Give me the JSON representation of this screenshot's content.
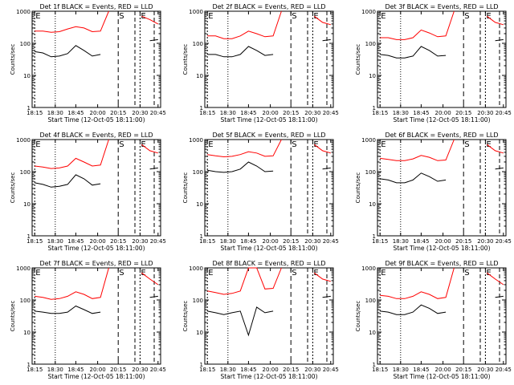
{
  "figure": {
    "colors": {
      "events": "#000000",
      "lld": "#ff0000",
      "axes": "#000000",
      "background": "#ffffff"
    }
  },
  "chart_data": [
    {
      "type": "line",
      "title": "Det 1f BLACK = Events, RED = LLD",
      "xlabel": "Start Time (12-Oct-05 18:11:00)",
      "ylabel": "Counts/sec",
      "x_tick_labels": [
        "18:15",
        "18:30",
        "18:45",
        "20:00",
        "20:15",
        "20:30",
        "20:45"
      ],
      "y_scale": "log",
      "ylim": [
        1,
        1000
      ],
      "y_tick_labels": [
        "1",
        "10",
        "100",
        "1000"
      ],
      "markers": [
        {
          "label": "E",
          "x": "18:15"
        },
        {
          "label": "S",
          "x": "20:15"
        },
        {
          "label": "E",
          "x": "20:30"
        }
      ],
      "series": [
        {
          "name": "LLD",
          "color": "#ff0000",
          "values": [
            240,
            240,
            220,
            230,
            280,
            330,
            300,
            230,
            240,
            1000,
            null,
            null,
            null,
            700,
            550,
            400
          ]
        },
        {
          "name": "Events",
          "color": "#000000",
          "values": [
            55,
            50,
            38,
            40,
            48,
            85,
            60,
            40,
            45,
            null,
            null,
            null,
            null,
            null,
            120,
            130
          ]
        }
      ]
    },
    {
      "type": "line",
      "title": "Det 2f BLACK = Events, RED = LLD",
      "xlabel": "Start Time (12-Oct-05 18:11:00)",
      "ylabel": "Counts/sec",
      "x_tick_labels": [
        "18:15",
        "18:30",
        "18:45",
        "20:00",
        "20:15",
        "20:30",
        "20:45"
      ],
      "y_scale": "log",
      "ylim": [
        1,
        1000
      ],
      "y_tick_labels": [
        "1",
        "10",
        "100",
        "1000"
      ],
      "markers": [
        {
          "label": "E",
          "x": "18:15"
        },
        {
          "label": "S",
          "x": "20:15"
        },
        {
          "label": "E",
          "x": "20:30"
        }
      ],
      "series": [
        {
          "name": "LLD",
          "color": "#ff0000",
          "values": [
            170,
            170,
            140,
            140,
            170,
            240,
            200,
            160,
            170,
            1000,
            null,
            null,
            null,
            700,
            450,
            380
          ]
        },
        {
          "name": "Events",
          "color": "#000000",
          "values": [
            45,
            45,
            38,
            38,
            45,
            80,
            60,
            42,
            45,
            null,
            null,
            null,
            null,
            null,
            120,
            130
          ]
        }
      ]
    },
    {
      "type": "line",
      "title": "Det 3f BLACK = Events, RED = LLD",
      "xlabel": "Start Time (12-Oct-05 18:11:00)",
      "ylabel": "Counts/sec",
      "x_tick_labels": [
        "18:15",
        "18:30",
        "18:45",
        "20:00",
        "20:15",
        "20:30",
        "20:45"
      ],
      "y_scale": "log",
      "ylim": [
        1,
        1000
      ],
      "y_tick_labels": [
        "1",
        "10",
        "100",
        "1000"
      ],
      "markers": [
        {
          "label": "E",
          "x": "18:15"
        },
        {
          "label": "S",
          "x": "20:15"
        },
        {
          "label": "E",
          "x": "20:30"
        }
      ],
      "series": [
        {
          "name": "LLD",
          "color": "#ff0000",
          "values": [
            150,
            150,
            130,
            130,
            150,
            260,
            210,
            160,
            170,
            1000,
            null,
            null,
            null,
            700,
            450,
            380
          ]
        },
        {
          "name": "Events",
          "color": "#000000",
          "values": [
            45,
            42,
            35,
            35,
            40,
            80,
            60,
            40,
            42,
            null,
            null,
            null,
            null,
            null,
            120,
            130
          ]
        }
      ]
    },
    {
      "type": "line",
      "title": "Det 4f BLACK = Events, RED = LLD",
      "xlabel": "Start Time (12-Oct-05 18:11:00)",
      "ylabel": "Counts/sec",
      "x_tick_labels": [
        "18:15",
        "18:30",
        "18:45",
        "20:00",
        "20:15",
        "20:30",
        "20:45"
      ],
      "y_scale": "log",
      "ylim": [
        1,
        1000
      ],
      "y_tick_labels": [
        "1",
        "10",
        "100",
        "1000"
      ],
      "markers": [
        {
          "label": "E",
          "x": "18:15"
        },
        {
          "label": "S",
          "x": "20:15"
        },
        {
          "label": "E",
          "x": "20:30"
        }
      ],
      "series": [
        {
          "name": "LLD",
          "color": "#ff0000",
          "values": [
            150,
            140,
            125,
            130,
            150,
            260,
            200,
            150,
            160,
            1000,
            null,
            null,
            null,
            700,
            450,
            380
          ]
        },
        {
          "name": "Events",
          "color": "#000000",
          "values": [
            45,
            40,
            33,
            35,
            40,
            80,
            60,
            38,
            42,
            null,
            null,
            null,
            null,
            null,
            120,
            130
          ]
        }
      ]
    },
    {
      "type": "line",
      "title": "Det 5f BLACK = Events, RED = LLD",
      "xlabel": "Start Time (12-Oct-05 18:11:00)",
      "ylabel": "Counts/sec",
      "x_tick_labels": [
        "18:15",
        "18:30",
        "18:45",
        "20:00",
        "20:15",
        "20:30",
        "20:45"
      ],
      "y_scale": "log",
      "ylim": [
        1,
        1000
      ],
      "y_tick_labels": [
        "1",
        "10",
        "100",
        "1000"
      ],
      "markers": [
        {
          "label": "E",
          "x": "18:15"
        },
        {
          "label": "S",
          "x": "20:15"
        },
        {
          "label": "E",
          "x": "20:30"
        }
      ],
      "series": [
        {
          "name": "LLD",
          "color": "#ff0000",
          "values": [
            340,
            310,
            290,
            300,
            340,
            420,
            380,
            300,
            310,
            1000,
            null,
            null,
            null,
            700,
            450,
            380
          ]
        },
        {
          "name": "Events",
          "color": "#000000",
          "values": [
            110,
            100,
            95,
            100,
            120,
            200,
            150,
            100,
            105,
            null,
            null,
            null,
            null,
            null,
            120,
            130
          ]
        }
      ]
    },
    {
      "type": "line",
      "title": "Det 6f BLACK = Events, RED = LLD",
      "xlabel": "Start Time (12-Oct-05 18:11:00)",
      "ylabel": "Counts/sec",
      "x_tick_labels": [
        "18:15",
        "18:30",
        "18:45",
        "20:00",
        "20:15",
        "20:30",
        "20:45"
      ],
      "y_scale": "log",
      "ylim": [
        1,
        1000
      ],
      "y_tick_labels": [
        "1",
        "10",
        "100",
        "1000"
      ],
      "markers": [
        {
          "label": "E",
          "x": "18:15"
        },
        {
          "label": "S",
          "x": "20:15"
        },
        {
          "label": "E",
          "x": "20:30"
        }
      ],
      "series": [
        {
          "name": "LLD",
          "color": "#ff0000",
          "values": [
            260,
            240,
            220,
            220,
            250,
            320,
            280,
            220,
            230,
            1000,
            null,
            null,
            null,
            700,
            450,
            380
          ]
        },
        {
          "name": "Events",
          "color": "#000000",
          "values": [
            60,
            55,
            45,
            45,
            55,
            90,
            70,
            50,
            55,
            null,
            null,
            null,
            null,
            null,
            120,
            130
          ]
        }
      ]
    },
    {
      "type": "line",
      "title": "Det 7f BLACK = Events, RED = LLD",
      "xlabel": "Start Time (12-Oct-05 18:11:00)",
      "ylabel": "Counts/sec",
      "x_tick_labels": [
        "18:15",
        "18:30",
        "18:45",
        "20:00",
        "20:15",
        "20:30",
        "20:45"
      ],
      "y_scale": "log",
      "ylim": [
        1,
        1000
      ],
      "y_tick_labels": [
        "1",
        "10",
        "100",
        "1000"
      ],
      "markers": [
        {
          "label": "E",
          "x": "18:15"
        },
        {
          "label": "S",
          "x": "20:15"
        },
        {
          "label": "E",
          "x": "20:30"
        }
      ],
      "series": [
        {
          "name": "LLD",
          "color": "#ff0000",
          "values": [
            130,
            120,
            105,
            110,
            130,
            180,
            150,
            110,
            120,
            1000,
            null,
            null,
            null,
            700,
            450,
            300
          ]
        },
        {
          "name": "Events",
          "color": "#000000",
          "values": [
            45,
            42,
            38,
            38,
            42,
            65,
            50,
            38,
            42,
            null,
            null,
            null,
            null,
            null,
            120,
            130
          ]
        }
      ]
    },
    {
      "type": "line",
      "title": "Det 8f BLACK = Events, RED = LLD",
      "xlabel": "Start Time (12-Oct-05 18:11:00)",
      "ylabel": "Counts/sec",
      "x_tick_labels": [
        "18:15",
        "18:30",
        "18:45",
        "20:00",
        "20:15",
        "20:30",
        "20:45"
      ],
      "y_scale": "log",
      "ylim": [
        1,
        1000
      ],
      "y_tick_labels": [
        "1",
        "10",
        "100",
        "1000"
      ],
      "markers": [
        {
          "label": "E",
          "x": "18:15"
        },
        {
          "label": "S",
          "x": "20:15"
        },
        {
          "label": "E",
          "x": "20:30"
        }
      ],
      "series": [
        {
          "name": "LLD",
          "color": "#ff0000",
          "values": [
            190,
            170,
            150,
            160,
            190,
            1000,
            1000,
            220,
            230,
            1000,
            null,
            null,
            null,
            700,
            450,
            380
          ]
        },
        {
          "name": "Events",
          "color": "#000000",
          "values": [
            45,
            40,
            35,
            40,
            45,
            8,
            60,
            40,
            45,
            null,
            null,
            null,
            null,
            null,
            120,
            130
          ]
        }
      ]
    },
    {
      "type": "line",
      "title": "Det 9f BLACK = Events, RED = LLD",
      "xlabel": "Start Time (12-Oct-05 18:11:00)",
      "ylabel": "Counts/sec",
      "x_tick_labels": [
        "18:15",
        "18:30",
        "18:45",
        "20:00",
        "20:15",
        "20:30",
        "20:45"
      ],
      "y_scale": "log",
      "ylim": [
        1,
        1000
      ],
      "y_tick_labels": [
        "1",
        "10",
        "100",
        "1000"
      ],
      "markers": [
        {
          "label": "E",
          "x": "18:15"
        },
        {
          "label": "S",
          "x": "20:15"
        },
        {
          "label": "E",
          "x": "20:30"
        }
      ],
      "series": [
        {
          "name": "LLD",
          "color": "#ff0000",
          "values": [
            140,
            130,
            110,
            110,
            130,
            180,
            150,
            110,
            120,
            1000,
            null,
            null,
            null,
            700,
            450,
            300
          ]
        },
        {
          "name": "Events",
          "color": "#000000",
          "values": [
            45,
            42,
            35,
            35,
            42,
            70,
            55,
            38,
            42,
            null,
            null,
            null,
            null,
            null,
            120,
            130
          ]
        }
      ]
    }
  ]
}
